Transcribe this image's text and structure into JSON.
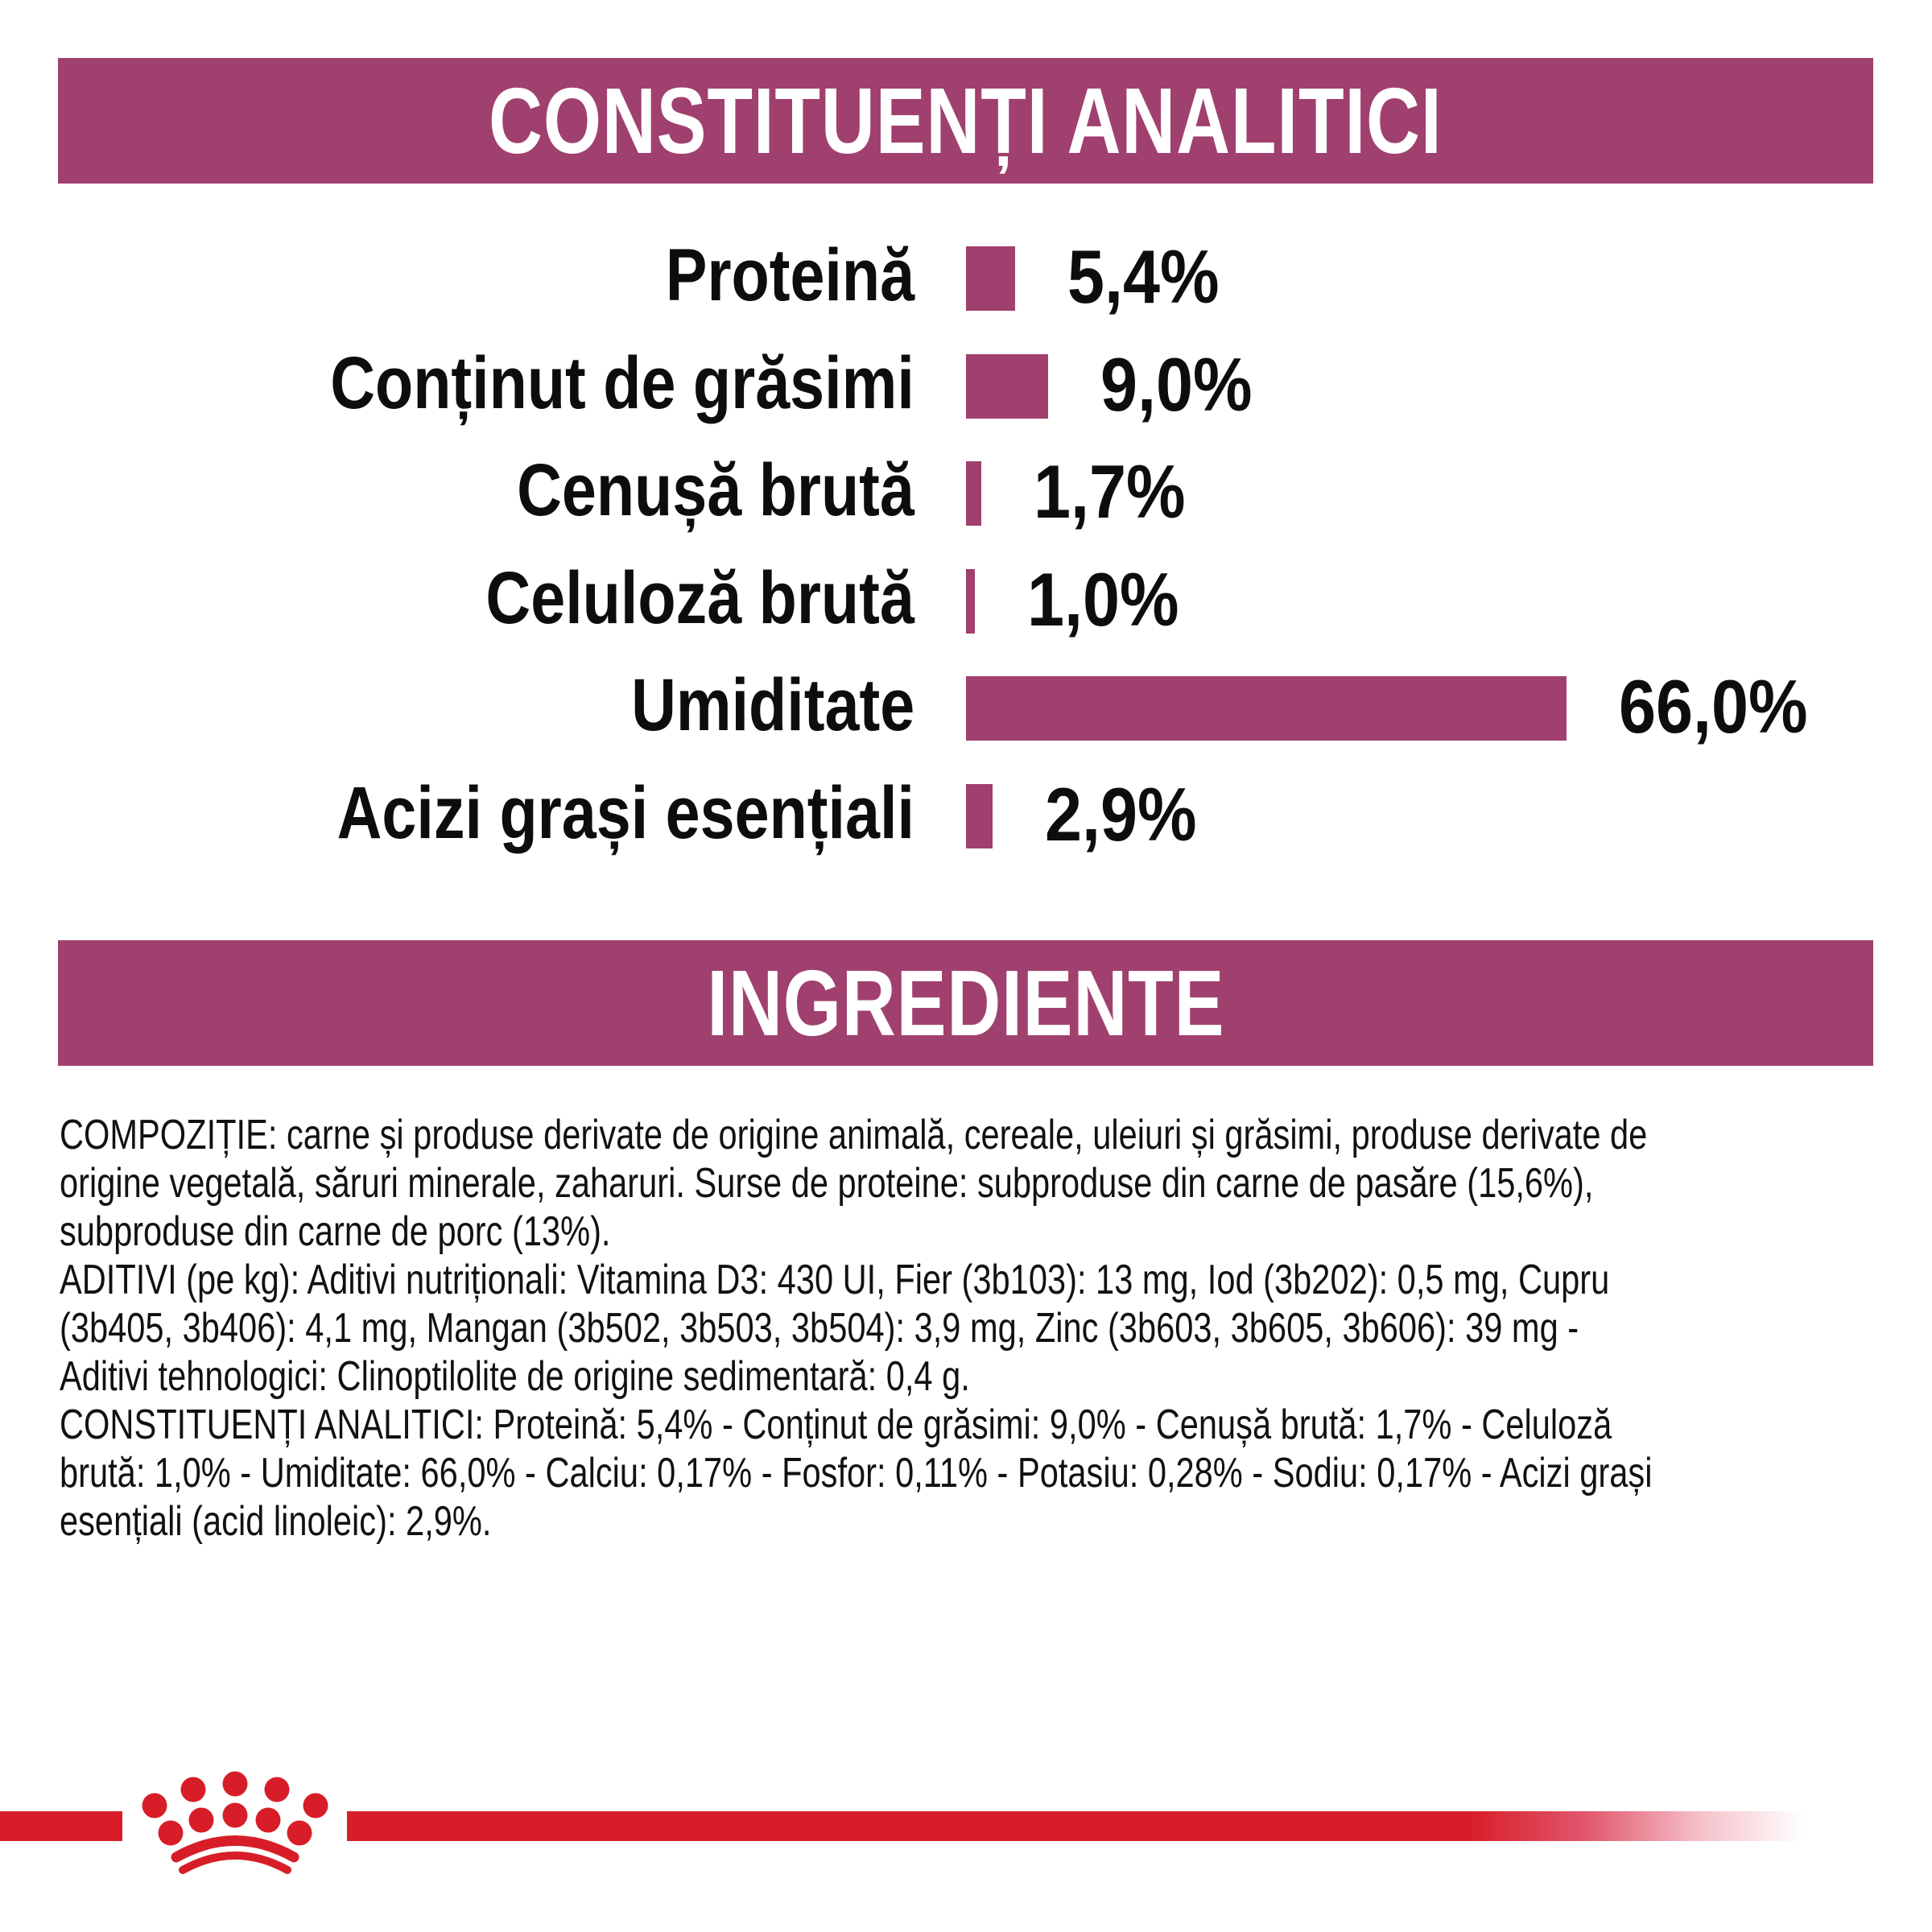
{
  "colors": {
    "banner": "#a0406e",
    "bar": "#a0406e",
    "brand_red": "#d71e28",
    "text": "#111111"
  },
  "analytics": {
    "title": "CONSTITUENȚI ANALITICI",
    "rows": [
      {
        "label": "Proteină",
        "value_text": "5,4%"
      },
      {
        "label": "Conținut de grăsimi",
        "value_text": "9,0%"
      },
      {
        "label": "Cenușă brută",
        "value_text": "1,7%"
      },
      {
        "label": "Celuloză brută",
        "value_text": "1,0%"
      },
      {
        "label": "Umiditate",
        "value_text": "66,0%"
      },
      {
        "label": "Acizi grași esențiali",
        "value_text": "2,9%"
      }
    ]
  },
  "chart_data": {
    "type": "bar",
    "orientation": "horizontal",
    "title": "CONSTITUENȚI ANALITICI",
    "categories": [
      "Proteină",
      "Conținut de grăsimi",
      "Cenușă brută",
      "Celuloză brută",
      "Umiditate",
      "Acizi grași esențiali"
    ],
    "values": [
      5.4,
      9.0,
      1.7,
      1.0,
      66.0,
      2.9
    ],
    "value_labels": [
      "5,4%",
      "9,0%",
      "1,7%",
      "1,0%",
      "66,0%",
      "2,9%"
    ],
    "unit": "%",
    "xlabel": "",
    "ylabel": "",
    "grid": false,
    "legend": null,
    "bar_color": "#a0406e"
  },
  "ingredients": {
    "title": "INGREDIENTE",
    "lines": [
      "COMPOZIȚIE: carne și produse derivate de origine animală, cereale, uleiuri și grăsimi, produse derivate de",
      "origine vegetală, săruri minerale, zaharuri. Surse de proteine: subproduse din carne de pasăre (15,6%),",
      "subproduse din carne de porc (13%).",
      "ADITIVI (pe kg): Aditivi nutriționali: Vitamina D3: 430 UI, Fier (3b103): 13 mg, Iod (3b202): 0,5 mg, Cupru",
      "(3b405, 3b406): 4,1 mg, Mangan (3b502, 3b503, 3b504): 3,9 mg, Zinc (3b603, 3b605, 3b606): 39 mg -",
      "Aditivi tehnologici: Clinoptilolite de origine sedimentară: 0,4 g.",
      "CONSTITUENȚI ANALITICI: Proteină: 5,4% - Conținut de grăsimi: 9,0% - Cenușă brută: 1,7% - Celuloză",
      "brută: 1,0% - Umiditate: 66,0% - Calciu: 0,17% - Fosfor: 0,11% - Potasiu: 0,28% - Sodiu: 0,17% - Acizi grași",
      "esențiali (acid linoleic): 2,9%."
    ]
  },
  "footer": {
    "logo_icon": "crown-icon"
  }
}
